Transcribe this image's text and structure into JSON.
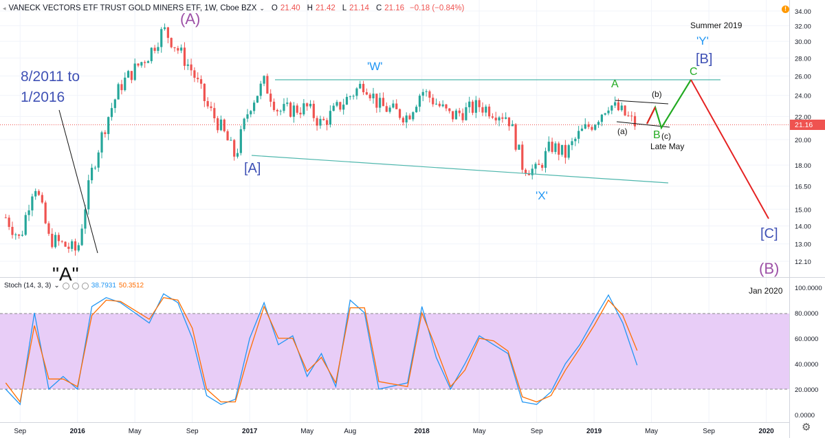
{
  "header": {
    "symbol": "VANECK VECTORS ETF TRUST GOLD MINERS ETF, 1W, Cboe BZX",
    "open": "21.40",
    "high": "21.42",
    "low": "21.14",
    "close": "21.16",
    "change": "−0.18 (−0.84%)",
    "open_label": "O",
    "high_label": "H",
    "low_label": "L",
    "close_label": "C",
    "last_price_badge": "21.16"
  },
  "stoch": {
    "label": "Stoch (14, 3, 3)",
    "k": "38.7931",
    "d": "50.3512"
  },
  "annotations": {
    "big_A_paren": "(A)",
    "span_line1": "8/2011 to",
    "span_line2": "1/2016",
    "quote_A": "\"A\"",
    "W": "'W'",
    "A_bracket": "[A]",
    "X": "'X'",
    "A_green": "A",
    "B_green": "B",
    "C_green": "C",
    "a_small": "(a)",
    "b_small": "(b)",
    "c_small": "(c)",
    "late_may": "Late May",
    "summer": "Summer 2019",
    "Y": "'Y'",
    "B_bracket": "[B]",
    "C_bracket": "[C]",
    "B_paren": "(B)",
    "jan2020": "Jan 2020"
  },
  "colors": {
    "up": "#26a69a",
    "down": "#ef5350",
    "k_line": "#2196f3",
    "d_line": "#ff6d00",
    "band": "#e1bee7",
    "wave_up": "#22aa22",
    "wave_down": "#e52222",
    "purple": "#9c4fa6",
    "blue_label": "#3f51b5",
    "teal_label": "#2196f3",
    "channel": "#4db6ac"
  },
  "chart_data": [
    {
      "type": "candlestick",
      "title": "VANECK VECTORS ETF TRUST GOLD MINERS ETF, 1W, Cboe BZX",
      "y_axis_ticks": [
        "34.00",
        "32.00",
        "30.00",
        "28.00",
        "26.00",
        "24.00",
        "22.00",
        "20.00",
        "18.00",
        "16.50",
        "15.00",
        "14.00",
        "13.00",
        "12.10"
      ],
      "y_scale": "log",
      "ylim": [
        11.5,
        35
      ],
      "x_axis_ticks": [
        "Sep",
        "2016",
        "May",
        "Sep",
        "2017",
        "May",
        "Aug",
        "2018",
        "May",
        "Sep",
        "2019",
        "May",
        "Sep",
        "2020"
      ],
      "approx_path": [
        [
          "2015-08",
          14.5
        ],
        [
          "2015-09",
          13.2
        ],
        [
          "2015-10",
          16.8
        ],
        [
          "2015-11",
          13.3
        ],
        [
          "2016-01",
          12.6
        ],
        [
          "2016-02",
          17.5
        ],
        [
          "2016-03",
          21.5
        ],
        [
          "2016-04",
          25.0
        ],
        [
          "2016-06",
          28.5
        ],
        [
          "2016-07",
          31.5
        ],
        [
          "2016-08",
          29.0
        ],
        [
          "2016-09",
          26.5
        ],
        [
          "2016-10",
          23.0
        ],
        [
          "2016-11",
          21.0
        ],
        [
          "2016-12",
          18.6
        ],
        [
          "2017-01",
          23.0
        ],
        [
          "2017-02",
          25.3
        ],
        [
          "2017-03",
          22.5
        ],
        [
          "2017-05",
          22.8
        ],
        [
          "2017-06",
          21.3
        ],
        [
          "2017-09",
          25.3
        ],
        [
          "2017-10",
          23.0
        ],
        [
          "2017-12",
          22.0
        ],
        [
          "2018-01",
          24.5
        ],
        [
          "2018-03",
          22.0
        ],
        [
          "2018-05",
          23.0
        ],
        [
          "2018-07",
          22.0
        ],
        [
          "2018-08",
          18.0
        ],
        [
          "2018-09",
          17.5
        ],
        [
          "2018-10",
          19.5
        ],
        [
          "2018-11",
          18.8
        ],
        [
          "2018-12",
          20.5
        ],
        [
          "2019-01",
          21.5
        ],
        [
          "2019-02",
          23.2
        ],
        [
          "2019-03",
          22.3
        ],
        [
          "2019-04",
          21.16
        ]
      ]
    },
    {
      "type": "line",
      "title": "Stoch (14, 3, 3)",
      "y_axis_ticks": [
        "100.0000",
        "80.0000",
        "60.0000",
        "40.0000",
        "20.0000",
        "0.0000"
      ],
      "ylim": [
        0,
        100
      ],
      "band": [
        20,
        80
      ],
      "series": [
        {
          "name": "38.7931",
          "x": [
            "2015-08",
            "2015-09",
            "2015-10",
            "2015-11",
            "2015-12",
            "2016-01",
            "2016-02",
            "2016-03",
            "2016-04",
            "2016-06",
            "2016-07",
            "2016-08",
            "2016-09",
            "2016-10",
            "2016-11",
            "2016-12",
            "2017-01",
            "2017-02",
            "2017-03",
            "2017-04",
            "2017-05",
            "2017-06",
            "2017-07",
            "2017-08",
            "2017-09",
            "2017-10",
            "2017-12",
            "2018-01",
            "2018-02",
            "2018-03",
            "2018-04",
            "2018-05",
            "2018-06",
            "2018-07",
            "2018-08",
            "2018-09",
            "2018-10",
            "2018-11",
            "2018-12",
            "2019-01",
            "2019-02",
            "2019-03",
            "2019-04"
          ],
          "values": [
            20,
            8,
            80,
            20,
            30,
            20,
            85,
            92,
            88,
            72,
            95,
            88,
            60,
            15,
            8,
            12,
            60,
            88,
            55,
            62,
            30,
            48,
            22,
            90,
            80,
            20,
            25,
            85,
            45,
            20,
            40,
            62,
            55,
            48,
            10,
            8,
            18,
            40,
            55,
            75,
            94,
            72,
            38.8
          ]
        },
        {
          "name": "50.3512",
          "x": [
            "2015-08",
            "2015-09",
            "2015-10",
            "2015-11",
            "2015-12",
            "2016-01",
            "2016-02",
            "2016-03",
            "2016-04",
            "2016-06",
            "2016-07",
            "2016-08",
            "2016-09",
            "2016-10",
            "2016-11",
            "2016-12",
            "2017-01",
            "2017-02",
            "2017-03",
            "2017-04",
            "2017-05",
            "2017-06",
            "2017-07",
            "2017-08",
            "2017-09",
            "2017-10",
            "2017-12",
            "2018-01",
            "2018-02",
            "2018-03",
            "2018-04",
            "2018-05",
            "2018-06",
            "2018-07",
            "2018-08",
            "2018-09",
            "2018-10",
            "2018-11",
            "2018-12",
            "2019-01",
            "2019-02",
            "2019-03",
            "2019-04"
          ],
          "values": [
            25,
            10,
            70,
            28,
            28,
            22,
            78,
            90,
            89,
            75,
            92,
            90,
            68,
            20,
            10,
            10,
            50,
            85,
            60,
            60,
            34,
            45,
            25,
            84,
            84,
            26,
            22,
            80,
            52,
            22,
            35,
            60,
            58,
            50,
            14,
            10,
            15,
            35,
            52,
            70,
            90,
            78,
            50.4
          ]
        }
      ]
    }
  ]
}
